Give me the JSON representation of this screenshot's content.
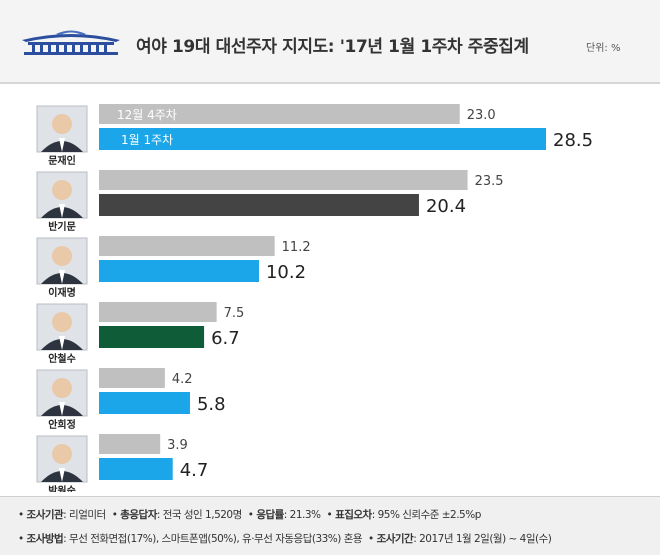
{
  "header": {
    "title": "여야 19대 대선주자 지지도: '17년 1월 1주차 주중집계",
    "unit": "단위: %"
  },
  "colors": {
    "prev": "#c0c0c0",
    "moon": "#1aa6e8",
    "ban": "#444444",
    "lee": "#1aa6e8",
    "ahn_cs": "#0f5c38",
    "ahn_hj": "#1aa6e8",
    "park": "#1aa6e8"
  },
  "chart_data": {
    "type": "bar",
    "orientation": "horizontal",
    "categories": [
      "문재인",
      "반기문",
      "이재명",
      "안철수",
      "안희정",
      "박원순"
    ],
    "series": [
      {
        "name": "12월 4주차",
        "values": [
          23.0,
          23.5,
          11.2,
          7.5,
          4.2,
          3.9
        ]
      },
      {
        "name": "1월 1주차",
        "values": [
          28.5,
          20.4,
          10.2,
          6.7,
          5.8,
          4.7
        ]
      }
    ],
    "value_labels_prev": [
      "23.0",
      "23.5",
      "11.2",
      "7.5",
      "4.2",
      "3.9"
    ],
    "value_labels_curr": [
      "28.5",
      "20.4",
      "10.2",
      "6.7",
      "5.8",
      "4.7"
    ],
    "xlim": [
      0,
      30
    ],
    "grid": false,
    "legend": "inside-first-bars"
  },
  "footer": {
    "line1": [
      {
        "label": "조사기관",
        "value": ": 리얼미터"
      },
      {
        "label": "총응답자",
        "value": ": 전국 성인 1,520명"
      },
      {
        "label": "응답률",
        "value": ": 21.3%"
      },
      {
        "label": "표집오차",
        "value": ": 95% 신뢰수준 ±2.5%p"
      }
    ],
    "line2": [
      {
        "label": "조사방법",
        "value": ": 무선 전화면접(17%), 스마트폰앱(50%), 유·무선 자동응답(33%) 혼용"
      },
      {
        "label": "조사기간",
        "value": ": 2017년 1월 2일(월) ~ 4일(수)"
      }
    ]
  }
}
